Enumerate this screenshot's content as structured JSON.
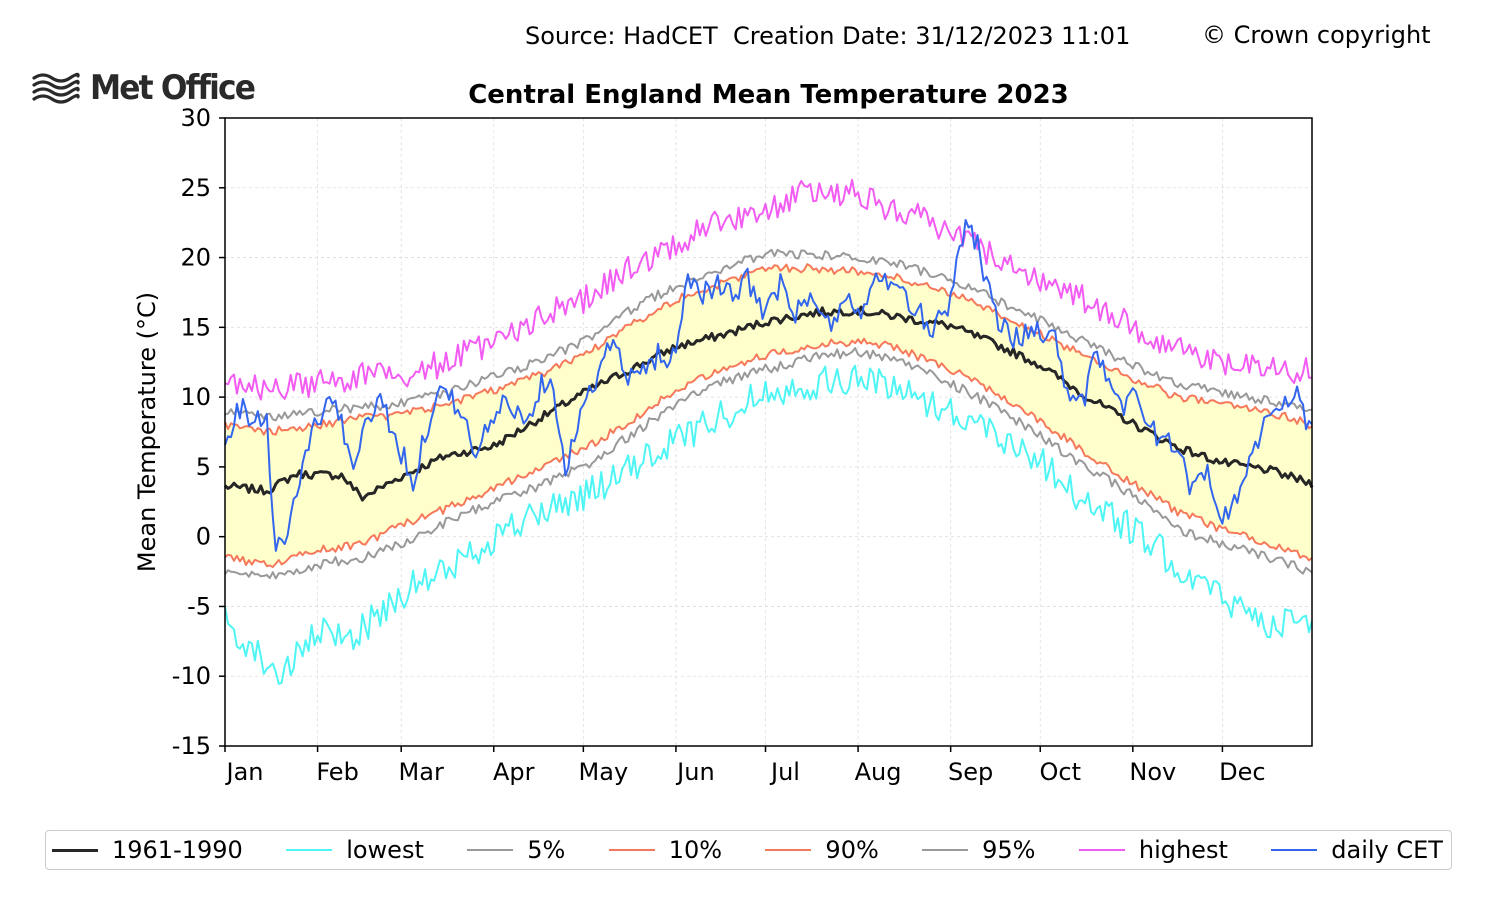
{
  "header": {
    "source_label": "Source: HadCET  Creation Date: 31/12/2023 11:01",
    "copyright": "© Crown copyright",
    "logo_text": "Met Office"
  },
  "chart_data": {
    "type": "line",
    "title": "Central England Mean Temperature 2023",
    "ylabel": "Mean Temperature (°C)",
    "xlabel": "",
    "ylim": [
      -15,
      30
    ],
    "yticks": [
      -15,
      -10,
      -5,
      0,
      5,
      10,
      15,
      20,
      25,
      30
    ],
    "ytick_labels": [
      "-15",
      "-10",
      "-5",
      "0",
      "5",
      "10",
      "15",
      "20",
      "25",
      "30"
    ],
    "xlim": [
      1,
      365
    ],
    "month_ticks": [
      1,
      32,
      60,
      91,
      121,
      152,
      182,
      213,
      244,
      274,
      305,
      335
    ],
    "month_labels": [
      "Jan",
      "Feb",
      "Mar",
      "Apr",
      "May",
      "Jun",
      "Jul",
      "Aug",
      "Sep",
      "Oct",
      "Nov",
      "Dec"
    ],
    "grid": true,
    "legend_position": "bottom",
    "shading": {
      "between": [
        "10%",
        "90%"
      ],
      "color": "#ffffcc"
    },
    "series": [
      {
        "name": "1961-1990",
        "color": "#262626",
        "width": 3,
        "anchors": [
          [
            1,
            3.6
          ],
          [
            15,
            3.3
          ],
          [
            25,
            4.5
          ],
          [
            40,
            4.4
          ],
          [
            47,
            2.8
          ],
          [
            60,
            4.3
          ],
          [
            75,
            5.8
          ],
          [
            91,
            6.5
          ],
          [
            105,
            8.3
          ],
          [
            121,
            10.3
          ],
          [
            135,
            11.8
          ],
          [
            152,
            13.6
          ],
          [
            170,
            14.6
          ],
          [
            182,
            15.4
          ],
          [
            200,
            16.1
          ],
          [
            213,
            16.2
          ],
          [
            225,
            15.8
          ],
          [
            244,
            15.1
          ],
          [
            259,
            13.8
          ],
          [
            274,
            12.3
          ],
          [
            289,
            10.1
          ],
          [
            305,
            8.1
          ],
          [
            320,
            6.4
          ],
          [
            335,
            5.3
          ],
          [
            350,
            4.8
          ],
          [
            365,
            3.8
          ]
        ]
      },
      {
        "name": "lowest",
        "color": "#4ff5f5",
        "width": 2,
        "anchors": [
          [
            1,
            -6
          ],
          [
            10,
            -8
          ],
          [
            20,
            -10
          ],
          [
            32,
            -7
          ],
          [
            45,
            -7
          ],
          [
            60,
            -4
          ],
          [
            75,
            -2.5
          ],
          [
            91,
            0
          ],
          [
            105,
            1.5
          ],
          [
            121,
            3
          ],
          [
            135,
            4.5
          ],
          [
            152,
            7
          ],
          [
            166,
            8.5
          ],
          [
            182,
            10.5
          ],
          [
            200,
            11
          ],
          [
            213,
            11.3
          ],
          [
            225,
            10.8
          ],
          [
            244,
            9
          ],
          [
            259,
            7.5
          ],
          [
            274,
            5.5
          ],
          [
            289,
            2.5
          ],
          [
            305,
            0.5
          ],
          [
            320,
            -2
          ],
          [
            335,
            -4.5
          ],
          [
            350,
            -6
          ],
          [
            365,
            -6.5
          ]
        ]
      },
      {
        "name": "5%",
        "color": "#999999",
        "width": 2,
        "anchors": [
          [
            1,
            -2.5
          ],
          [
            15,
            -3
          ],
          [
            32,
            -2
          ],
          [
            47,
            -1.5
          ],
          [
            60,
            -0.5
          ],
          [
            75,
            1
          ],
          [
            91,
            2.5
          ],
          [
            105,
            3.5
          ],
          [
            121,
            5
          ],
          [
            135,
            7
          ],
          [
            152,
            9.5
          ],
          [
            166,
            11
          ],
          [
            182,
            12
          ],
          [
            200,
            13
          ],
          [
            213,
            13.2
          ],
          [
            225,
            12.8
          ],
          [
            244,
            11
          ],
          [
            259,
            9.3
          ],
          [
            274,
            7.2
          ],
          [
            289,
            5
          ],
          [
            305,
            3
          ],
          [
            320,
            0.5
          ],
          [
            335,
            -0.5
          ],
          [
            350,
            -1.5
          ],
          [
            365,
            -2.5
          ]
        ]
      },
      {
        "name": "10%",
        "color": "#f5795a",
        "width": 2,
        "anchors": [
          [
            1,
            -1.5
          ],
          [
            15,
            -2
          ],
          [
            32,
            -1
          ],
          [
            47,
            -0.5
          ],
          [
            60,
            0.8
          ],
          [
            75,
            2
          ],
          [
            91,
            3.5
          ],
          [
            105,
            4.8
          ],
          [
            121,
            6.3
          ],
          [
            135,
            8
          ],
          [
            152,
            10.5
          ],
          [
            166,
            12
          ],
          [
            182,
            13
          ],
          [
            200,
            13.8
          ],
          [
            213,
            14
          ],
          [
            225,
            13.6
          ],
          [
            244,
            12
          ],
          [
            259,
            10.3
          ],
          [
            274,
            8.3
          ],
          [
            289,
            6
          ],
          [
            305,
            3.8
          ],
          [
            320,
            1.8
          ],
          [
            335,
            0.5
          ],
          [
            350,
            -0.5
          ],
          [
            365,
            -1.5
          ]
        ]
      },
      {
        "name": "90%",
        "color": "#f5795a",
        "width": 2,
        "anchors": [
          [
            1,
            8
          ],
          [
            15,
            7.5
          ],
          [
            32,
            8
          ],
          [
            47,
            8.5
          ],
          [
            60,
            8.8
          ],
          [
            75,
            9.5
          ],
          [
            91,
            10.5
          ],
          [
            105,
            11.5
          ],
          [
            121,
            13
          ],
          [
            135,
            15
          ],
          [
            152,
            17
          ],
          [
            166,
            18
          ],
          [
            182,
            19.3
          ],
          [
            200,
            19.2
          ],
          [
            213,
            19
          ],
          [
            225,
            18.6
          ],
          [
            244,
            17.5
          ],
          [
            259,
            16
          ],
          [
            274,
            14.5
          ],
          [
            289,
            13
          ],
          [
            305,
            11.3
          ],
          [
            320,
            10
          ],
          [
            335,
            9.5
          ],
          [
            350,
            9
          ],
          [
            365,
            8
          ]
        ]
      },
      {
        "name": "95%",
        "color": "#999999",
        "width": 2,
        "anchors": [
          [
            1,
            9
          ],
          [
            15,
            8.5
          ],
          [
            32,
            9
          ],
          [
            47,
            9.3
          ],
          [
            60,
            9.5
          ],
          [
            75,
            10.3
          ],
          [
            91,
            11.5
          ],
          [
            105,
            12.5
          ],
          [
            121,
            14
          ],
          [
            135,
            16
          ],
          [
            152,
            18
          ],
          [
            166,
            19
          ],
          [
            182,
            20.3
          ],
          [
            200,
            20.2
          ],
          [
            213,
            20
          ],
          [
            225,
            19.6
          ],
          [
            244,
            18.5
          ],
          [
            259,
            17
          ],
          [
            274,
            15.5
          ],
          [
            289,
            14
          ],
          [
            305,
            12.3
          ],
          [
            320,
            11
          ],
          [
            335,
            10.3
          ],
          [
            350,
            9.8
          ],
          [
            365,
            9
          ]
        ]
      },
      {
        "name": "highest",
        "color": "#f25cf2",
        "width": 2,
        "anchors": [
          [
            1,
            11
          ],
          [
            15,
            10.5
          ],
          [
            32,
            11
          ],
          [
            47,
            11.5
          ],
          [
            60,
            11.5
          ],
          [
            75,
            12.5
          ],
          [
            91,
            14
          ],
          [
            105,
            15.5
          ],
          [
            121,
            17
          ],
          [
            135,
            19
          ],
          [
            152,
            21
          ],
          [
            166,
            22.5
          ],
          [
            182,
            23.5
          ],
          [
            200,
            25
          ],
          [
            213,
            24.5
          ],
          [
            225,
            23.5
          ],
          [
            244,
            22
          ],
          [
            259,
            20
          ],
          [
            274,
            18.5
          ],
          [
            289,
            17
          ],
          [
            305,
            15
          ],
          [
            320,
            13.5
          ],
          [
            335,
            12.5
          ],
          [
            350,
            12
          ],
          [
            365,
            12
          ]
        ]
      },
      {
        "name": "daily CET",
        "color": "#3366ee",
        "width": 2,
        "anchors": [
          [
            1,
            6
          ],
          [
            5,
            9.5
          ],
          [
            10,
            8.5
          ],
          [
            15,
            8.5
          ],
          [
            18,
            -1
          ],
          [
            22,
            0.5
          ],
          [
            25,
            3
          ],
          [
            28,
            6
          ],
          [
            32,
            8.5
          ],
          [
            38,
            10
          ],
          [
            43,
            5
          ],
          [
            47,
            7
          ],
          [
            52,
            10
          ],
          [
            57,
            8
          ],
          [
            60,
            6
          ],
          [
            64,
            4
          ],
          [
            70,
            9
          ],
          [
            75,
            11
          ],
          [
            80,
            8.5
          ],
          [
            85,
            6
          ],
          [
            91,
            8.5
          ],
          [
            96,
            10
          ],
          [
            101,
            8
          ],
          [
            105,
            10
          ],
          [
            110,
            12
          ],
          [
            115,
            5
          ],
          [
            121,
            9
          ],
          [
            126,
            12
          ],
          [
            131,
            14
          ],
          [
            136,
            11
          ],
          [
            141,
            12
          ],
          [
            146,
            13
          ],
          [
            152,
            13
          ],
          [
            156,
            19
          ],
          [
            160,
            17.5
          ],
          [
            166,
            18
          ],
          [
            171,
            17
          ],
          [
            176,
            18.5
          ],
          [
            182,
            16
          ],
          [
            187,
            18
          ],
          [
            192,
            16
          ],
          [
            198,
            17
          ],
          [
            203,
            15
          ],
          [
            208,
            17
          ],
          [
            213,
            16
          ],
          [
            218,
            18
          ],
          [
            223,
            18.5
          ],
          [
            228,
            17
          ],
          [
            233,
            16
          ],
          [
            238,
            15
          ],
          [
            244,
            17
          ],
          [
            247,
            21
          ],
          [
            250,
            23
          ],
          [
            254,
            20
          ],
          [
            259,
            16
          ],
          [
            264,
            14
          ],
          [
            269,
            14.5
          ],
          [
            274,
            15
          ],
          [
            279,
            14
          ],
          [
            284,
            10
          ],
          [
            289,
            10
          ],
          [
            292,
            14
          ],
          [
            296,
            11
          ],
          [
            301,
            9
          ],
          [
            305,
            11
          ],
          [
            310,
            8
          ],
          [
            315,
            6.5
          ],
          [
            320,
            7
          ],
          [
            325,
            3
          ],
          [
            330,
            5
          ],
          [
            335,
            1
          ],
          [
            340,
            3
          ],
          [
            345,
            6
          ],
          [
            350,
            8.5
          ],
          [
            355,
            9
          ],
          [
            360,
            10
          ],
          [
            365,
            7.5
          ]
        ]
      }
    ]
  }
}
